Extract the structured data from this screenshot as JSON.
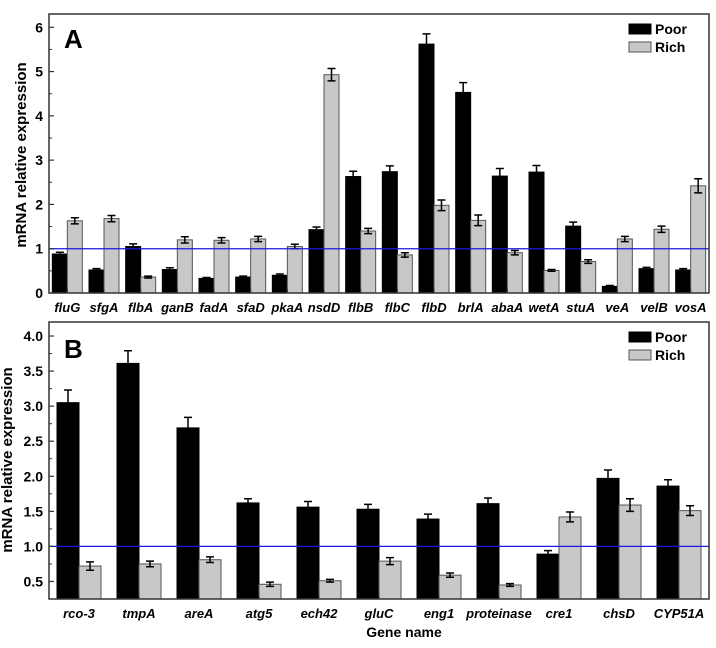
{
  "chart_data": [
    {
      "type": "bar",
      "panel_label": "A",
      "ylabel": "mRNA relative expression",
      "xlabel": "",
      "ylim": [
        0,
        6.3
      ],
      "yticks": [
        0,
        1,
        2,
        3,
        4,
        5,
        6
      ],
      "ytick_labels": [
        "0",
        "1",
        "2",
        "3",
        "4",
        "5",
        "6"
      ],
      "reference_line": 1,
      "reference_color": "#1a1adf",
      "legend_position": "top-right",
      "grid": false,
      "categories": [
        "fluG",
        "sfgA",
        "flbA",
        "ganB",
        "fadA",
        "sfaD",
        "pkaA",
        "nsdD",
        "flbB",
        "flbC",
        "flbD",
        "brlA",
        "abaA",
        "wetA",
        "stuA",
        "veA",
        "velB",
        "vosA"
      ],
      "series": [
        {
          "name": "Poor",
          "color": "#000000",
          "values": [
            0.88,
            0.52,
            1.05,
            0.53,
            0.33,
            0.36,
            0.4,
            1.43,
            2.63,
            2.74,
            5.62,
            4.53,
            2.64,
            2.73,
            1.51,
            0.15,
            0.55,
            0.52
          ],
          "errors": [
            0.04,
            0.03,
            0.06,
            0.04,
            0.02,
            0.02,
            0.03,
            0.06,
            0.12,
            0.13,
            0.23,
            0.22,
            0.17,
            0.15,
            0.09,
            0.02,
            0.03,
            0.03
          ]
        },
        {
          "name": "Rich",
          "color": "#c8c8c8",
          "values": [
            1.63,
            1.68,
            0.36,
            1.2,
            1.19,
            1.22,
            1.05,
            4.93,
            1.4,
            0.86,
            1.98,
            1.64,
            0.91,
            0.51,
            0.71,
            1.22,
            1.44,
            2.42
          ],
          "errors": [
            0.07,
            0.07,
            0.02,
            0.07,
            0.06,
            0.06,
            0.05,
            0.14,
            0.06,
            0.05,
            0.12,
            0.12,
            0.05,
            0.02,
            0.04,
            0.06,
            0.07,
            0.16
          ]
        }
      ]
    },
    {
      "type": "bar",
      "panel_label": "B",
      "ylabel": "mRNA relative expression",
      "xlabel": "Gene name",
      "ylim": [
        0.25,
        4.2
      ],
      "yticks": [
        0.5,
        1.0,
        1.5,
        2.0,
        2.5,
        3.0,
        3.5,
        4.0
      ],
      "ytick_labels": [
        "0.5",
        "1.0",
        "1.5",
        "2.0",
        "2.5",
        "3.0",
        "3.5",
        "4.0"
      ],
      "reference_line": 1,
      "reference_color": "#1a1adf",
      "legend_position": "top-right",
      "grid": false,
      "categories": [
        "rco-3",
        "tmpA",
        "areA",
        "atg5",
        "ech42",
        "gluC",
        "eng1",
        "proteinase",
        "cre1",
        "chsD",
        "CYP51A"
      ],
      "series": [
        {
          "name": "Poor",
          "color": "#000000",
          "values": [
            3.05,
            3.61,
            2.69,
            1.62,
            1.56,
            1.53,
            1.39,
            1.61,
            0.89,
            1.97,
            1.86
          ],
          "errors": [
            0.18,
            0.18,
            0.15,
            0.06,
            0.08,
            0.07,
            0.07,
            0.08,
            0.05,
            0.12,
            0.09
          ]
        },
        {
          "name": "Rich",
          "color": "#c8c8c8",
          "values": [
            0.72,
            0.75,
            0.81,
            0.46,
            0.51,
            0.79,
            0.59,
            0.45,
            1.42,
            1.59,
            1.51
          ],
          "errors": [
            0.06,
            0.04,
            0.04,
            0.03,
            0.02,
            0.05,
            0.03,
            0.02,
            0.07,
            0.09,
            0.07
          ]
        }
      ]
    }
  ]
}
